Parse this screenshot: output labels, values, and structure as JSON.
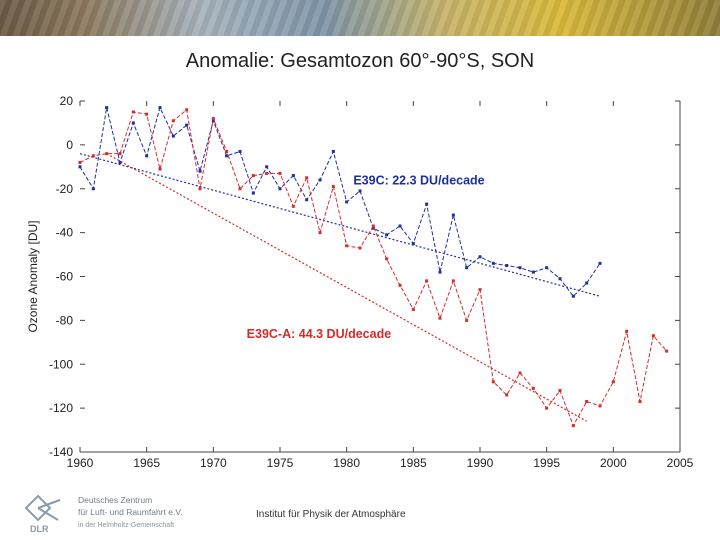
{
  "title": "Anomalie: Gesamtozon 60°-90°S, SON",
  "footer": "Institut für Physik der Atmosphäre",
  "logo": {
    "abbr": "DLR",
    "line1": "Deutsches Zentrum",
    "line2": "für Luft- und Raumfahrt e.V.",
    "line3": "in der Helmholtz-Gemeinschaft"
  },
  "colors": {
    "e39c": "#1f2f9e",
    "e39ca": "#d42b2b",
    "axis": "#444444"
  },
  "chart_data": {
    "type": "line",
    "title": "Anomalie: Gesamtozon 60°-90°S, SON",
    "xlabel": "",
    "ylabel": "Ozone Anomaly [DU]",
    "xlim": [
      1960,
      2005
    ],
    "ylim": [
      -140,
      20
    ],
    "xticks": [
      1960,
      1965,
      1970,
      1975,
      1980,
      1985,
      1990,
      1995,
      2000,
      2005
    ],
    "yticks": [
      20,
      0,
      -20,
      -40,
      -60,
      -80,
      -100,
      -120,
      -140
    ],
    "grid": false,
    "annotations": [
      {
        "text": "E39C: 22.3 DU/decade",
        "color": "#1f2f9e",
        "x": 1980.5,
        "y": -18
      },
      {
        "text": "E39C-A: 44.3 DU/decade",
        "color": "#d42b2b",
        "x": 1972.5,
        "y": -88
      }
    ],
    "series": [
      {
        "name": "E39C",
        "color": "#1f2f9e",
        "x": [
          1960,
          1961,
          1962,
          1963,
          1964,
          1965,
          1966,
          1967,
          1968,
          1969,
          1970,
          1971,
          1972,
          1973,
          1974,
          1975,
          1976,
          1977,
          1978,
          1979,
          1980,
          1981,
          1982,
          1983,
          1984,
          1985,
          1986,
          1987,
          1988,
          1989,
          1990,
          1991,
          1992,
          1993,
          1994,
          1995,
          1996,
          1997,
          1998,
          1999
        ],
        "y": [
          -10,
          -20,
          17,
          -8,
          10,
          -5,
          17,
          4,
          9,
          -12,
          11,
          -5,
          -3,
          -22,
          -10,
          -20,
          -14,
          -25,
          -16,
          -3,
          -26,
          -21,
          -38,
          -41,
          -37,
          -45,
          -27,
          -58,
          -32,
          -56,
          -51,
          -54,
          -55,
          -56,
          -58,
          -56,
          -61,
          -69,
          -63,
          -54
        ],
        "trend": [
          [
            1960,
            -4
          ],
          [
            1999,
            -69
          ]
        ]
      },
      {
        "name": "E39C-A",
        "color": "#d42b2b",
        "x": [
          1960,
          1961,
          1962,
          1963,
          1964,
          1965,
          1966,
          1967,
          1968,
          1969,
          1970,
          1971,
          1972,
          1973,
          1974,
          1975,
          1976,
          1977,
          1978,
          1979,
          1980,
          1981,
          1982,
          1983,
          1984,
          1985,
          1986,
          1987,
          1988,
          1989,
          1990,
          1991,
          1992,
          1993,
          1994,
          1995,
          1996,
          1997,
          1998,
          1999,
          2000,
          2001,
          2002,
          2003,
          2004
        ],
        "y": [
          -8,
          -5,
          -4,
          -4,
          15,
          14,
          -11,
          11,
          16,
          -20,
          12,
          -3,
          -20,
          -14,
          -13,
          -13,
          -28,
          -15,
          -40,
          -19,
          -46,
          -47,
          -37,
          -52,
          -64,
          -75,
          -62,
          -79,
          -62,
          -80,
          -66,
          -108,
          -114,
          -104,
          -111,
          -120,
          -112,
          -128,
          -117,
          -119,
          -108,
          -85,
          -117,
          -87,
          -94
        ],
        "trend": [
          [
            1962,
            -4
          ],
          [
            1998,
            -126
          ]
        ]
      }
    ]
  }
}
